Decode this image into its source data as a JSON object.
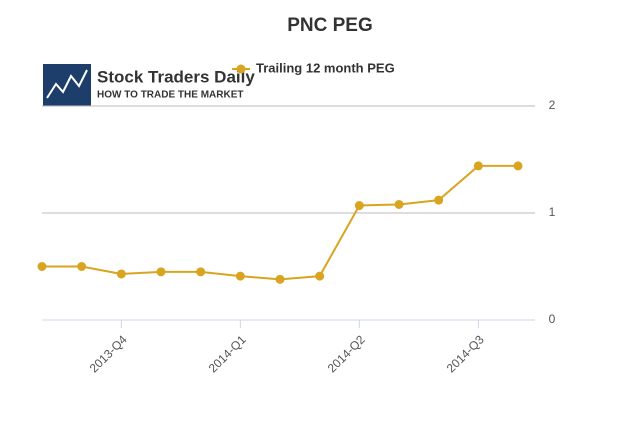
{
  "chart_data": {
    "type": "line",
    "title": "PNC PEG",
    "categories": [
      null,
      null,
      "2013-Q4",
      null,
      null,
      "2014-Q1",
      null,
      null,
      "2014-Q2",
      null,
      null,
      "2014-Q3",
      null
    ],
    "series": [
      {
        "name": "Trailing 12 month PEG",
        "color": "#d9a520",
        "values": [
          0.5,
          0.5,
          0.43,
          0.45,
          0.45,
          0.41,
          0.38,
          0.41,
          1.07,
          1.08,
          1.12,
          1.44,
          1.44
        ]
      }
    ],
    "ylim": [
      0,
      2
    ],
    "yticks": [
      0,
      1,
      2
    ],
    "grid": true,
    "legend": "top"
  },
  "logo": {
    "name": "Stock Traders Daily",
    "tagline": "HOW TO TRADE THE MARKET"
  }
}
